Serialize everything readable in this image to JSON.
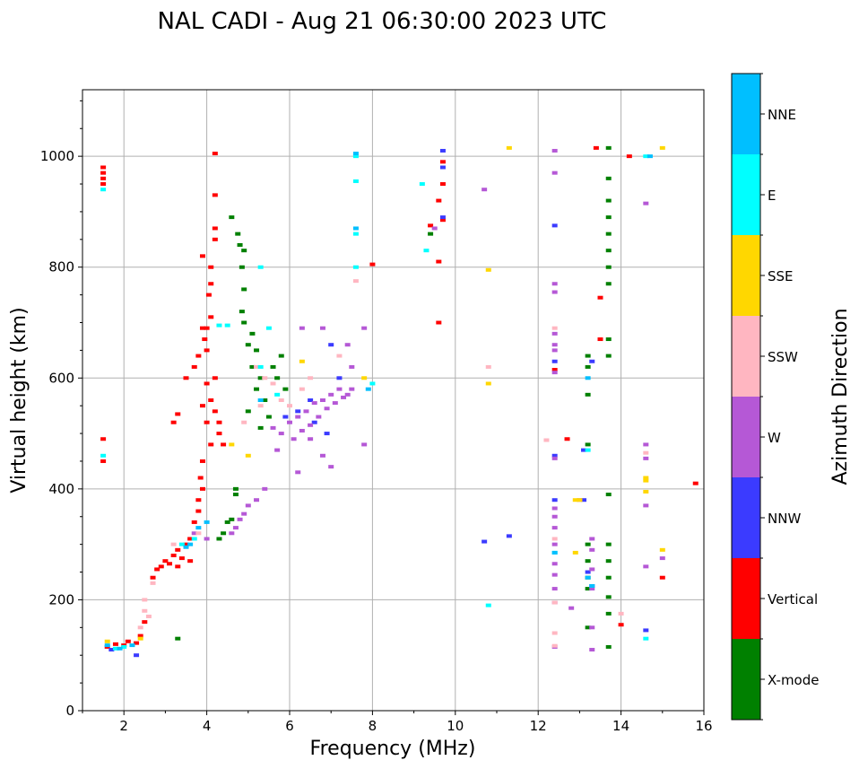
{
  "chart_data": {
    "type": "scatter",
    "title": "NAL CADI - Aug 21 06:30:00 2023 UTC",
    "xlabel": "Frequency (MHz)",
    "ylabel": "Virtual height (km)",
    "xlim": [
      1,
      16
    ],
    "ylim": [
      0,
      1120
    ],
    "xticks": [
      "2",
      "4",
      "6",
      "8",
      "10",
      "12",
      "14",
      "16"
    ],
    "yticks": [
      "0",
      "200",
      "400",
      "600",
      "800",
      "1000"
    ],
    "grid": true,
    "colorbar": {
      "label": "Azimuth Direction",
      "categories": [
        {
          "name": "X-mode",
          "color": "#008000"
        },
        {
          "name": "Vertical",
          "color": "#ff0000"
        },
        {
          "name": "NNW",
          "color": "#3b3bff"
        },
        {
          "name": "W",
          "color": "#b558d6"
        },
        {
          "name": "SSW",
          "color": "#ffb6c1"
        },
        {
          "name": "SSE",
          "color": "#ffd700"
        },
        {
          "name": "E",
          "color": "#00ffff"
        },
        {
          "name": "NNE",
          "color": "#00bfff"
        }
      ]
    },
    "series": [
      {
        "name": "X-mode",
        "points": [
          [
            3.3,
            130
          ],
          [
            4.7,
            390
          ],
          [
            4.7,
            400
          ],
          [
            4.6,
            345
          ],
          [
            4.5,
            340
          ],
          [
            4.4,
            320
          ],
          [
            4.3,
            310
          ],
          [
            4.6,
            890
          ],
          [
            4.75,
            860
          ],
          [
            4.8,
            840
          ],
          [
            4.9,
            830
          ],
          [
            4.85,
            800
          ],
          [
            4.9,
            760
          ],
          [
            4.85,
            720
          ],
          [
            4.9,
            700
          ],
          [
            5.1,
            680
          ],
          [
            5.0,
            660
          ],
          [
            5.2,
            650
          ],
          [
            5.1,
            620
          ],
          [
            5.3,
            600
          ],
          [
            5.2,
            580
          ],
          [
            5.4,
            560
          ],
          [
            5.0,
            540
          ],
          [
            5.5,
            530
          ],
          [
            5.3,
            510
          ],
          [
            5.6,
            620
          ],
          [
            5.8,
            640
          ],
          [
            5.7,
            600
          ],
          [
            5.9,
            580
          ],
          [
            13.2,
            640
          ],
          [
            13.2,
            620
          ],
          [
            13.2,
            570
          ],
          [
            13.2,
            480
          ],
          [
            13.2,
            300
          ],
          [
            13.2,
            270
          ],
          [
            13.2,
            240
          ],
          [
            13.2,
            220
          ],
          [
            13.2,
            150
          ],
          [
            13.7,
            960
          ],
          [
            13.7,
            920
          ],
          [
            13.7,
            890
          ],
          [
            13.7,
            860
          ],
          [
            13.7,
            830
          ],
          [
            13.7,
            800
          ],
          [
            13.7,
            770
          ],
          [
            13.7,
            670
          ],
          [
            13.7,
            640
          ],
          [
            13.7,
            390
          ],
          [
            13.7,
            300
          ],
          [
            13.7,
            270
          ],
          [
            13.7,
            240
          ],
          [
            13.7,
            205
          ],
          [
            13.7,
            175
          ],
          [
            13.7,
            115
          ],
          [
            13.7,
            1015
          ],
          [
            9.4,
            860
          ]
        ]
      },
      {
        "name": "Vertical",
        "points": [
          [
            1.5,
            980
          ],
          [
            1.5,
            970
          ],
          [
            1.5,
            960
          ],
          [
            1.5,
            950
          ],
          [
            1.5,
            490
          ],
          [
            1.5,
            450
          ],
          [
            1.6,
            115
          ],
          [
            1.8,
            120
          ],
          [
            2.0,
            118
          ],
          [
            2.1,
            125
          ],
          [
            2.3,
            122
          ],
          [
            2.4,
            135
          ],
          [
            2.5,
            160
          ],
          [
            2.7,
            240
          ],
          [
            2.8,
            255
          ],
          [
            2.9,
            260
          ],
          [
            3.0,
            270
          ],
          [
            3.1,
            265
          ],
          [
            3.2,
            280
          ],
          [
            3.3,
            290
          ],
          [
            3.4,
            275
          ],
          [
            3.5,
            300
          ],
          [
            3.6,
            310
          ],
          [
            3.7,
            340
          ],
          [
            3.8,
            380
          ],
          [
            3.85,
            420
          ],
          [
            3.9,
            450
          ],
          [
            3.9,
            400
          ],
          [
            3.8,
            360
          ],
          [
            3.2,
            520
          ],
          [
            3.3,
            535
          ],
          [
            3.5,
            600
          ],
          [
            3.7,
            620
          ],
          [
            3.8,
            640
          ],
          [
            3.9,
            690
          ],
          [
            3.95,
            670
          ],
          [
            4.0,
            650
          ],
          [
            4.0,
            690
          ],
          [
            4.1,
            710
          ],
          [
            4.05,
            750
          ],
          [
            4.1,
            770
          ],
          [
            4.1,
            800
          ],
          [
            3.9,
            820
          ],
          [
            4.2,
            1005
          ],
          [
            4.2,
            930
          ],
          [
            4.2,
            870
          ],
          [
            4.2,
            850
          ],
          [
            4.1,
            560
          ],
          [
            4.2,
            540
          ],
          [
            4.3,
            520
          ],
          [
            4.1,
            480
          ],
          [
            4.2,
            600
          ],
          [
            4.0,
            590
          ],
          [
            3.9,
            550
          ],
          [
            4.0,
            520
          ],
          [
            8.0,
            805
          ],
          [
            9.4,
            875
          ],
          [
            9.6,
            810
          ],
          [
            9.6,
            700
          ],
          [
            9.7,
            990
          ],
          [
            9.7,
            950
          ],
          [
            9.7,
            885
          ],
          [
            9.6,
            920
          ],
          [
            12.4,
            615
          ],
          [
            12.7,
            490
          ],
          [
            13.5,
            670
          ],
          [
            13.5,
            745
          ],
          [
            13.4,
            1015
          ],
          [
            14.2,
            1000
          ],
          [
            14.0,
            155
          ],
          [
            15.0,
            240
          ],
          [
            15.8,
            410
          ],
          [
            4.3,
            500
          ],
          [
            4.4,
            480
          ],
          [
            3.6,
            270
          ],
          [
            3.3,
            260
          ]
        ]
      },
      {
        "name": "NNW",
        "points": [
          [
            1.7,
            110
          ],
          [
            2.3,
            100
          ],
          [
            9.7,
            1010
          ],
          [
            9.7,
            980
          ],
          [
            9.7,
            890
          ],
          [
            10.7,
            305
          ],
          [
            11.3,
            315
          ],
          [
            12.4,
            875
          ],
          [
            12.4,
            630
          ],
          [
            12.4,
            460
          ],
          [
            12.4,
            380
          ],
          [
            13.1,
            470
          ],
          [
            13.1,
            380
          ],
          [
            13.3,
            630
          ],
          [
            13.3,
            225
          ],
          [
            13.2,
            250
          ],
          [
            14.6,
            145
          ],
          [
            7.0,
            660
          ],
          [
            7.2,
            600
          ],
          [
            6.5,
            560
          ],
          [
            6.2,
            540
          ],
          [
            5.9,
            530
          ],
          [
            6.6,
            520
          ],
          [
            6.9,
            500
          ]
        ]
      },
      {
        "name": "W",
        "points": [
          [
            4.6,
            320
          ],
          [
            4.7,
            330
          ],
          [
            4.8,
            345
          ],
          [
            4.9,
            355
          ],
          [
            5.0,
            370
          ],
          [
            5.2,
            380
          ],
          [
            5.4,
            400
          ],
          [
            5.6,
            510
          ],
          [
            5.8,
            500
          ],
          [
            6.0,
            520
          ],
          [
            6.2,
            530
          ],
          [
            6.4,
            540
          ],
          [
            6.6,
            555
          ],
          [
            6.8,
            560
          ],
          [
            7.0,
            570
          ],
          [
            7.2,
            580
          ],
          [
            7.4,
            570
          ],
          [
            6.1,
            490
          ],
          [
            6.3,
            505
          ],
          [
            6.5,
            515
          ],
          [
            6.7,
            530
          ],
          [
            6.9,
            545
          ],
          [
            7.1,
            555
          ],
          [
            7.3,
            565
          ],
          [
            7.5,
            580
          ],
          [
            5.7,
            470
          ],
          [
            6.5,
            490
          ],
          [
            6.2,
            430
          ],
          [
            6.8,
            460
          ],
          [
            7.0,
            440
          ],
          [
            7.8,
            480
          ],
          [
            7.5,
            620
          ],
          [
            7.8,
            690
          ],
          [
            7.4,
            660
          ],
          [
            6.3,
            690
          ],
          [
            6.8,
            690
          ],
          [
            10.7,
            940
          ],
          [
            9.5,
            870
          ],
          [
            12.4,
            1010
          ],
          [
            12.4,
            970
          ],
          [
            12.4,
            770
          ],
          [
            12.4,
            755
          ],
          [
            12.4,
            680
          ],
          [
            12.4,
            660
          ],
          [
            12.4,
            650
          ],
          [
            12.4,
            610
          ],
          [
            12.4,
            455
          ],
          [
            12.4,
            365
          ],
          [
            12.4,
            350
          ],
          [
            12.4,
            330
          ],
          [
            12.4,
            300
          ],
          [
            12.4,
            265
          ],
          [
            12.4,
            245
          ],
          [
            12.4,
            220
          ],
          [
            12.4,
            195
          ],
          [
            12.4,
            115
          ],
          [
            12.8,
            185
          ],
          [
            13.0,
            380
          ],
          [
            13.3,
            310
          ],
          [
            13.3,
            290
          ],
          [
            13.3,
            255
          ],
          [
            13.3,
            220
          ],
          [
            13.3,
            150
          ],
          [
            13.3,
            110
          ],
          [
            14.6,
            480
          ],
          [
            14.6,
            455
          ],
          [
            14.6,
            370
          ],
          [
            14.6,
            260
          ],
          [
            14.6,
            915
          ],
          [
            15.0,
            275
          ],
          [
            4.0,
            310
          ],
          [
            3.7,
            320
          ]
        ]
      },
      {
        "name": "SSW",
        "points": [
          [
            2.5,
            200
          ],
          [
            2.5,
            180
          ],
          [
            2.6,
            170
          ],
          [
            2.4,
            150
          ],
          [
            2.7,
            230
          ],
          [
            3.2,
            300
          ],
          [
            3.8,
            320
          ],
          [
            5.2,
            620
          ],
          [
            5.4,
            600
          ],
          [
            5.6,
            590
          ],
          [
            5.8,
            560
          ],
          [
            6.0,
            550
          ],
          [
            6.3,
            580
          ],
          [
            6.5,
            600
          ],
          [
            7.2,
            640
          ],
          [
            7.6,
            775
          ],
          [
            10.8,
            620
          ],
          [
            12.2,
            488
          ],
          [
            12.4,
            690
          ],
          [
            12.4,
            310
          ],
          [
            12.4,
            195
          ],
          [
            12.4,
            140
          ],
          [
            12.4,
            117
          ],
          [
            14.0,
            175
          ],
          [
            14.6,
            465
          ],
          [
            4.9,
            520
          ],
          [
            5.3,
            550
          ]
        ]
      },
      {
        "name": "SSE",
        "points": [
          [
            1.6,
            125
          ],
          [
            2.4,
            130
          ],
          [
            4.6,
            480
          ],
          [
            5.0,
            460
          ],
          [
            6.3,
            630
          ],
          [
            7.8,
            600
          ],
          [
            10.8,
            795
          ],
          [
            10.8,
            590
          ],
          [
            11.3,
            1015
          ],
          [
            12.9,
            285
          ],
          [
            12.9,
            380
          ],
          [
            13.0,
            380
          ],
          [
            14.6,
            420
          ],
          [
            14.6,
            415
          ],
          [
            14.6,
            395
          ],
          [
            15.0,
            1015
          ],
          [
            15.0,
            290
          ]
        ]
      },
      {
        "name": "E",
        "points": [
          [
            1.5,
            940
          ],
          [
            1.5,
            460
          ],
          [
            1.8,
            112
          ],
          [
            2.0,
            115
          ],
          [
            3.4,
            300
          ],
          [
            3.7,
            310
          ],
          [
            4.3,
            695
          ],
          [
            4.5,
            695
          ],
          [
            5.3,
            800
          ],
          [
            5.5,
            690
          ],
          [
            5.3,
            620
          ],
          [
            5.7,
            570
          ],
          [
            7.6,
            1000
          ],
          [
            7.6,
            955
          ],
          [
            7.6,
            860
          ],
          [
            7.6,
            800
          ],
          [
            8.0,
            590
          ],
          [
            9.2,
            950
          ],
          [
            9.3,
            830
          ],
          [
            10.8,
            190
          ],
          [
            12.4,
            285
          ],
          [
            13.2,
            470
          ],
          [
            14.6,
            1000
          ],
          [
            14.6,
            130
          ]
        ]
      },
      {
        "name": "NNE",
        "points": [
          [
            1.6,
            118
          ],
          [
            1.9,
            112
          ],
          [
            2.2,
            118
          ],
          [
            3.5,
            295
          ],
          [
            3.6,
            300
          ],
          [
            3.8,
            330
          ],
          [
            4.0,
            340
          ],
          [
            5.3,
            560
          ],
          [
            7.6,
            1005
          ],
          [
            7.6,
            870
          ],
          [
            7.9,
            580
          ],
          [
            12.4,
            285
          ],
          [
            13.2,
            600
          ],
          [
            13.2,
            240
          ],
          [
            13.3,
            225
          ],
          [
            14.7,
            1000
          ]
        ]
      }
    ]
  }
}
